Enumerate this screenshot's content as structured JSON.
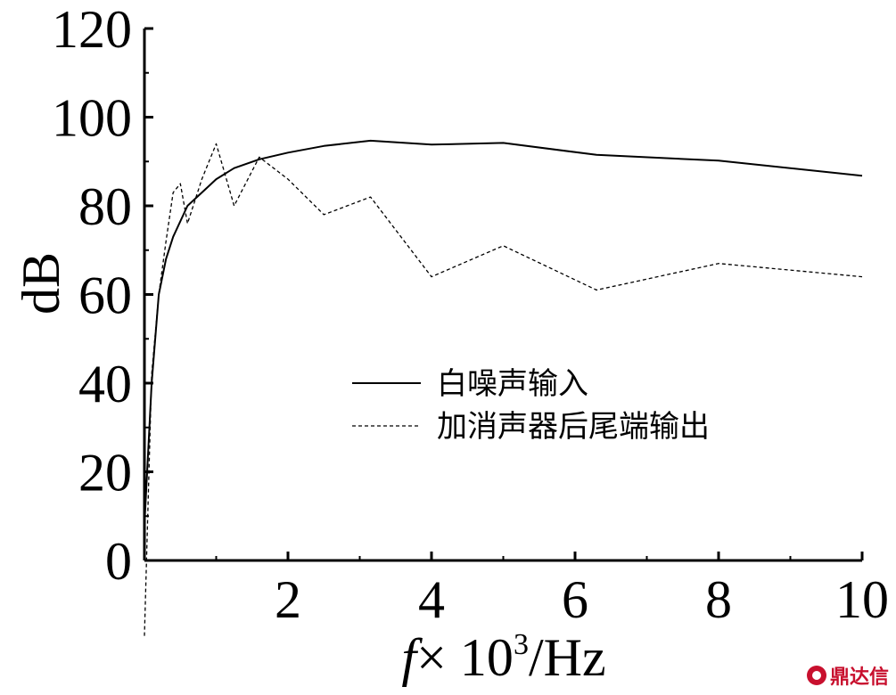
{
  "chart_data": {
    "type": "line",
    "title": "",
    "xlabel_main": "f",
    "xlabel_rest": "× 10",
    "xlabel_sup": "3",
    "xlabel_unit": "/Hz",
    "ylabel": "dB",
    "xlim": [
      0,
      10
    ],
    "ylim": [
      0,
      120
    ],
    "x_ticks": [
      "2",
      "4",
      "6",
      "8",
      "10"
    ],
    "x_tick_values": [
      2,
      4,
      6,
      8,
      10
    ],
    "y_ticks": [
      "0",
      "20",
      "40",
      "60",
      "80",
      "100",
      "120"
    ],
    "y_tick_values": [
      0,
      20,
      40,
      60,
      80,
      100,
      120
    ],
    "grid": false,
    "legend_position": "center",
    "series": [
      {
        "name": "白噪声输入",
        "style": "solid",
        "color": "#000000",
        "x": [
          0,
          0.1,
          0.2,
          0.3,
          0.4,
          0.6,
          0.8,
          1.0,
          1.25,
          1.6,
          2.0,
          2.5,
          3.15,
          4.0,
          5.0,
          6.3,
          8.0,
          10.0
        ],
        "y": [
          8,
          40,
          60,
          68,
          73,
          80,
          83,
          86,
          88.5,
          90.5,
          92,
          93.5,
          94.7,
          93.8,
          94.2,
          91.5,
          90.2,
          86.8
        ]
      },
      {
        "name": "加消声器后尾端输出",
        "style": "dashed",
        "color": "#000000",
        "x": [
          0,
          0.1,
          0.2,
          0.3,
          0.4,
          0.5,
          0.6,
          0.8,
          1.0,
          1.25,
          1.6,
          2.0,
          2.5,
          3.15,
          4.0,
          5.0,
          6.3,
          8.0,
          10.0
        ],
        "y": [
          -17,
          42,
          60,
          72,
          83,
          85,
          76,
          86,
          94,
          80,
          91,
          86,
          78,
          82,
          64,
          71,
          61,
          67,
          64
        ]
      }
    ]
  },
  "watermark": {
    "text": "鼎达信",
    "logo": "dingdaxin-logo-icon",
    "color": "#c8102e"
  }
}
